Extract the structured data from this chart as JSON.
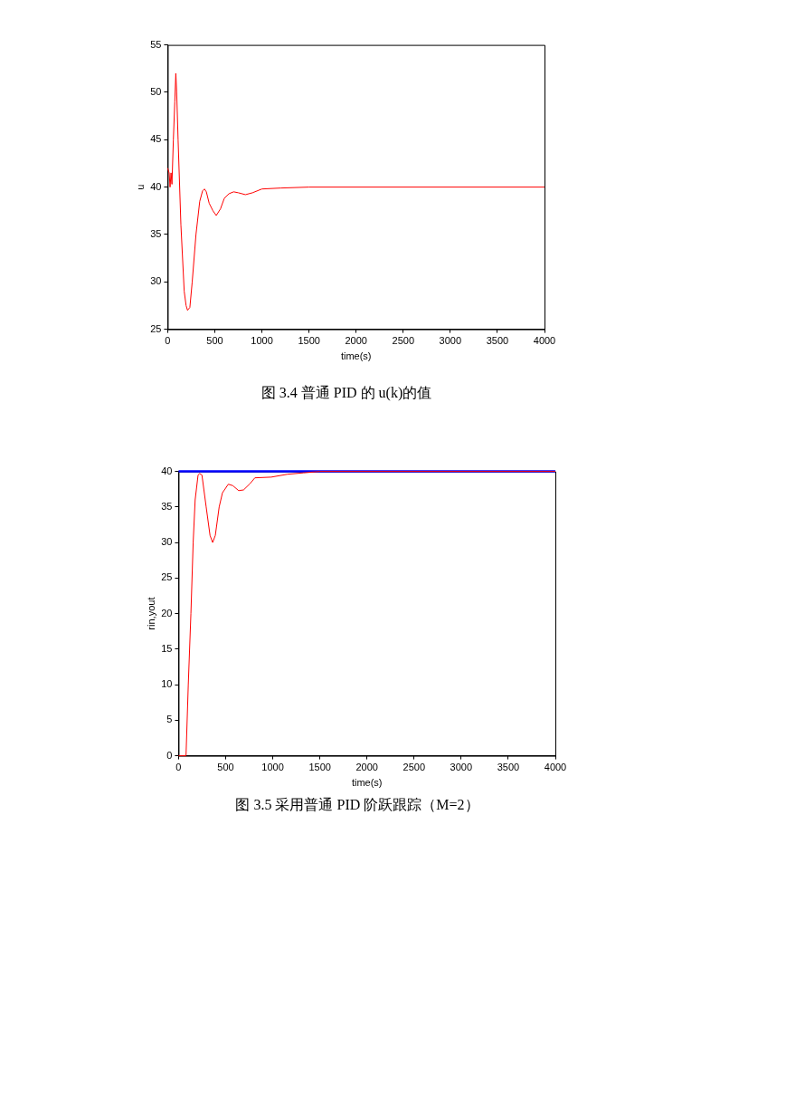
{
  "chart_data": [
    {
      "type": "line",
      "title": "图 3.4  普通 PID 的 u(k)的值",
      "xlabel": "time(s)",
      "ylabel": "u",
      "xlim": [
        0,
        4000
      ],
      "xticks": [
        0,
        500,
        1000,
        1500,
        2000,
        2500,
        3000,
        3500,
        4000
      ],
      "ylim": [
        25,
        55
      ],
      "yticks": [
        25,
        30,
        35,
        40,
        45,
        50,
        55
      ],
      "grid": false,
      "series": [
        {
          "color": "#ff0000",
          "x": [
            0,
            15,
            25,
            35,
            45,
            60,
            75,
            86,
            95,
            110,
            140,
            175,
            195,
            210,
            235,
            260,
            300,
            340,
            370,
            390,
            410,
            440,
            480,
            515,
            560,
            600,
            650,
            700,
            750,
            825,
            900,
            1000,
            1200,
            1500,
            4000
          ],
          "values": [
            42,
            41.5,
            40,
            41.5,
            40.3,
            45,
            49,
            52,
            50,
            45,
            36,
            29,
            27.5,
            27,
            27.3,
            30,
            35,
            38.5,
            39.6,
            39.8,
            39.5,
            38.3,
            37.5,
            37,
            37.7,
            38.8,
            39.3,
            39.5,
            39.4,
            39.2,
            39.4,
            39.8,
            39.9,
            40,
            40
          ]
        }
      ]
    },
    {
      "type": "line",
      "title": "图 3.5  采用普通 PID 阶跃跟踪（M=2）",
      "xlabel": "time(s)",
      "ylabel": "rin,yout",
      "xlim": [
        0,
        4000
      ],
      "xticks": [
        0,
        500,
        1000,
        1500,
        2000,
        2500,
        3000,
        3500,
        4000
      ],
      "ylim": [
        0,
        40
      ],
      "yticks": [
        0,
        5,
        10,
        15,
        20,
        25,
        30,
        35,
        40
      ],
      "grid": false,
      "series": [
        {
          "color": "#0000ff",
          "x": [
            0,
            4000
          ],
          "values": [
            40,
            40
          ]
        },
        {
          "color": "#ff0000",
          "x": [
            0,
            79,
            103,
            131,
            155,
            176,
            207,
            224,
            248,
            293,
            334,
            362,
            390,
            431,
            466,
            528,
            576,
            638,
            690,
            760,
            810,
            983,
            1155,
            1328,
            1500,
            4000
          ],
          "values": [
            0,
            0,
            10,
            20,
            30,
            36,
            39.5,
            39.7,
            39.5,
            35,
            31,
            30,
            31,
            35,
            37,
            38.2,
            38,
            37.3,
            37.4,
            38.3,
            39.1,
            39.2,
            39.6,
            39.8,
            40,
            40
          ]
        }
      ]
    }
  ]
}
